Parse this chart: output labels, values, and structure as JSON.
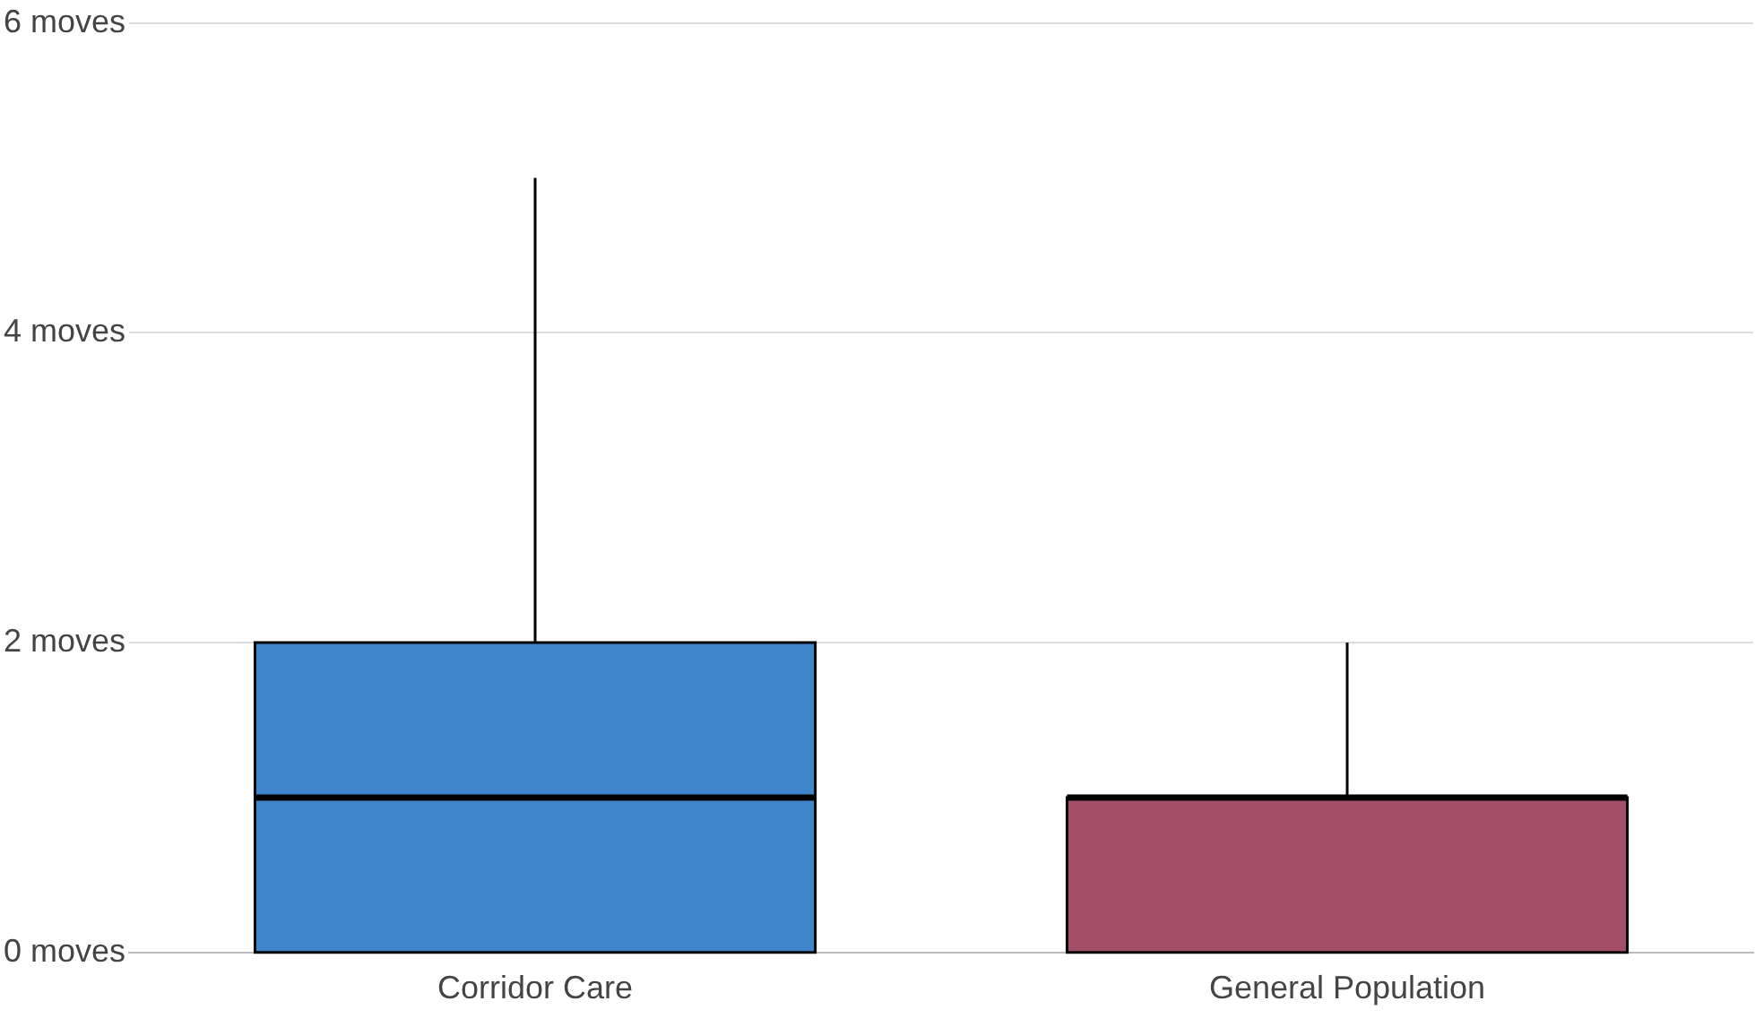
{
  "chart_data": {
    "type": "box",
    "categories": [
      "Corridor Care",
      "General Population"
    ],
    "boxes": [
      {
        "low": 0,
        "q1": 0,
        "median": 1,
        "q3": 2,
        "high": 5
      },
      {
        "low": 0,
        "q1": 0,
        "median": 1,
        "q3": 1,
        "high": 2
      }
    ],
    "colors": [
      "#3f85cb",
      "#a44f68"
    ],
    "ylim": [
      0,
      6
    ],
    "yticks": [
      {
        "value": 0,
        "label": "0 moves"
      },
      {
        "value": 2,
        "label": "2 moves"
      },
      {
        "value": 4,
        "label": "4 moves"
      },
      {
        "value": 6,
        "label": "6 moves"
      }
    ],
    "grid": "y",
    "legend": false
  }
}
